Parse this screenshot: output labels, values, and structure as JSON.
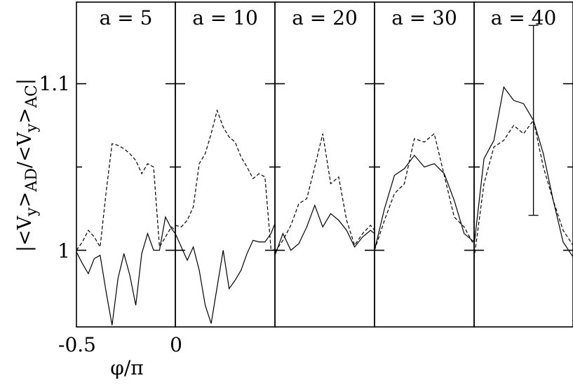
{
  "chart_data": {
    "type": "line",
    "ylabel": "|<V_y>_AD/<V_y>_AC|",
    "xlabel": "φ/π",
    "x_ticklabels": [
      "-0.5",
      "0"
    ],
    "y_ticklabels": [
      "1.1",
      "1"
    ],
    "ylim": [
      0.954,
      1.149
    ],
    "xlim": [
      -0.5,
      0.0
    ],
    "grid": false,
    "panels": [
      {
        "title": "a = 5",
        "series": [
          {
            "style": "solid",
            "x": [
              -0.5,
              -0.47,
              -0.44,
              -0.41,
              -0.38,
              -0.35,
              -0.32,
              -0.29,
              -0.26,
              -0.23,
              -0.2,
              -0.17,
              -0.14,
              -0.11,
              -0.08,
              -0.05,
              -0.02,
              0.0
            ],
            "y": [
              0.999,
              0.992,
              0.986,
              0.995,
              0.997,
              0.975,
              0.955,
              0.983,
              0.998,
              0.985,
              0.967,
              0.998,
              1.01,
              1.0,
              1.0,
              1.02,
              1.013,
              1.01
            ]
          },
          {
            "style": "dashed",
            "x": [
              -0.5,
              -0.47,
              -0.44,
              -0.41,
              -0.38,
              -0.35,
              -0.32,
              -0.29,
              -0.26,
              -0.23,
              -0.2,
              -0.17,
              -0.14,
              -0.11,
              -0.08,
              -0.05,
              -0.02,
              0.0
            ],
            "y": [
              1.0,
              1.005,
              1.012,
              1.008,
              1.002,
              1.035,
              1.064,
              1.063,
              1.061,
              1.058,
              1.054,
              1.046,
              1.052,
              1.05,
              1.002,
              1.008,
              1.014,
              1.012
            ]
          }
        ]
      },
      {
        "title": "a = 10",
        "series": [
          {
            "style": "solid",
            "x": [
              -0.5,
              -0.47,
              -0.44,
              -0.41,
              -0.38,
              -0.35,
              -0.32,
              -0.29,
              -0.26,
              -0.23,
              -0.2,
              -0.17,
              -0.14,
              -0.11,
              -0.08,
              -0.05,
              -0.02,
              0.0
            ],
            "y": [
              1.01,
              1.002,
              0.994,
              1.002,
              0.988,
              0.967,
              0.956,
              0.978,
              1.0,
              0.977,
              0.982,
              0.988,
              0.998,
              1.006,
              1.005,
              1.005,
              1.01,
              1.016
            ]
          },
          {
            "style": "dashed",
            "x": [
              -0.5,
              -0.47,
              -0.44,
              -0.41,
              -0.38,
              -0.35,
              -0.32,
              -0.29,
              -0.26,
              -0.23,
              -0.2,
              -0.17,
              -0.14,
              -0.11,
              -0.08,
              -0.05,
              -0.02,
              0.0
            ],
            "y": [
              1.015,
              1.014,
              1.018,
              1.026,
              1.052,
              1.058,
              1.07,
              1.084,
              1.074,
              1.068,
              1.065,
              1.056,
              1.05,
              1.043,
              1.046,
              1.044,
              1.001,
              1.0
            ]
          }
        ]
      },
      {
        "title": "a = 20",
        "series": [
          {
            "style": "solid",
            "x": [
              -0.5,
              -0.46,
              -0.42,
              -0.38,
              -0.34,
              -0.3,
              -0.26,
              -0.22,
              -0.18,
              -0.14,
              -0.1,
              -0.06,
              -0.02,
              0.0
            ],
            "y": [
              0.997,
              1.01,
              1.0,
              1.004,
              1.014,
              1.027,
              1.014,
              1.022,
              1.018,
              1.012,
              1.002,
              1.008,
              1.012,
              1.01
            ]
          },
          {
            "style": "dashed",
            "x": [
              -0.5,
              -0.46,
              -0.42,
              -0.38,
              -0.34,
              -0.3,
              -0.26,
              -0.22,
              -0.18,
              -0.14,
              -0.1,
              -0.06,
              -0.02,
              0.0
            ],
            "y": [
              0.999,
              1.006,
              1.015,
              1.028,
              1.031,
              1.05,
              1.07,
              1.04,
              1.044,
              1.018,
              1.003,
              1.01,
              1.015,
              1.012
            ]
          }
        ]
      },
      {
        "title": "a = 30",
        "series": [
          {
            "style": "solid",
            "x": [
              -0.5,
              -0.45,
              -0.4,
              -0.35,
              -0.3,
              -0.25,
              -0.2,
              -0.15,
              -0.1,
              -0.05,
              0.0
            ],
            "y": [
              1.0,
              1.025,
              1.045,
              1.049,
              1.057,
              1.05,
              1.052,
              1.046,
              1.03,
              1.01,
              1.005
            ]
          },
          {
            "style": "dashed",
            "x": [
              -0.5,
              -0.45,
              -0.4,
              -0.35,
              -0.3,
              -0.25,
              -0.2,
              -0.15,
              -0.1,
              -0.05,
              0.0
            ],
            "y": [
              1.0,
              1.018,
              1.034,
              1.04,
              1.067,
              1.065,
              1.07,
              1.045,
              1.02,
              1.014,
              1.003
            ]
          }
        ]
      },
      {
        "title": "a = 40",
        "series": [
          {
            "style": "solid",
            "x": [
              -0.5,
              -0.45,
              -0.4,
              -0.35,
              -0.3,
              -0.25,
              -0.2,
              -0.15,
              -0.1,
              -0.05,
              0.0
            ],
            "y": [
              1.003,
              1.055,
              1.066,
              1.098,
              1.09,
              1.088,
              1.078,
              1.058,
              1.03,
              1.005,
              0.996
            ]
          },
          {
            "style": "dashed",
            "x": [
              -0.5,
              -0.45,
              -0.4,
              -0.35,
              -0.3,
              -0.25,
              -0.2,
              -0.15,
              -0.1,
              -0.05,
              0.0
            ],
            "y": [
              0.995,
              1.04,
              1.062,
              1.066,
              1.075,
              1.07,
              1.078,
              1.05,
              1.03,
              1.012,
              1.003
            ]
          }
        ],
        "error_bar": {
          "x": -0.2,
          "center": 1.078,
          "low": 1.021,
          "high": 1.135
        }
      }
    ]
  }
}
